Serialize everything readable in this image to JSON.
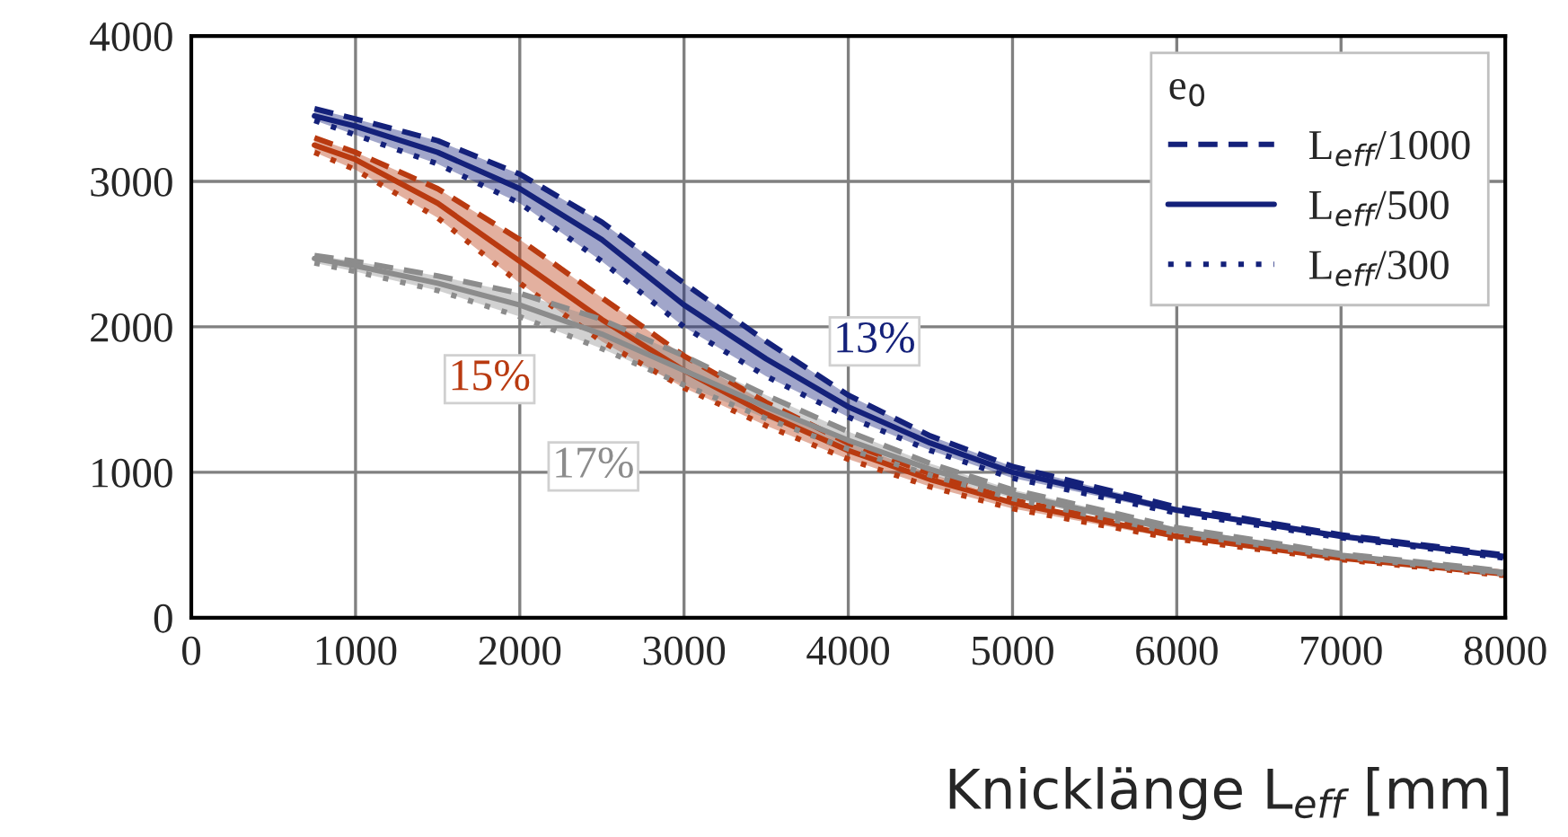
{
  "chart_data": {
    "type": "line",
    "xlabel": "Knicklänge L$_{eff}$ [mm]",
    "legend_title": "e$_{0}$",
    "x": [
      750,
      1000,
      1500,
      2000,
      2500,
      3000,
      3500,
      4000,
      4500,
      5000,
      6000,
      7000,
      8000
    ],
    "series": [
      {
        "name": "L$_{eff}$/1000",
        "color": "#14217a",
        "line_style": "dashed",
        "values": [
          3500,
          3430,
          3280,
          3050,
          2720,
          2300,
          1900,
          1530,
          1250,
          1040,
          760,
          570,
          430
        ]
      },
      {
        "name": "L$_{eff}$/500",
        "color": "#14217a",
        "line_style": "solid",
        "values": [
          3450,
          3380,
          3200,
          2950,
          2600,
          2150,
          1780,
          1450,
          1200,
          1000,
          740,
          560,
          420
        ],
        "lower": [
          3420,
          3320,
          3120,
          2850,
          2450,
          2000,
          1660,
          1380,
          1150,
          960,
          720,
          550,
          410
        ],
        "upper": [
          3500,
          3430,
          3280,
          3050,
          2720,
          2300,
          1900,
          1530,
          1250,
          1040,
          760,
          570,
          430
        ]
      },
      {
        "name": "L$_{eff}$/300",
        "color": "#14217a",
        "line_style": "dotted",
        "values": [
          3420,
          3320,
          3120,
          2850,
          2450,
          2000,
          1660,
          1380,
          1150,
          960,
          720,
          550,
          410
        ]
      },
      {
        "color": "#b93a10",
        "line_style": "dashed",
        "values": [
          3300,
          3200,
          2950,
          2600,
          2200,
          1800,
          1480,
          1200,
          990,
          810,
          570,
          420,
          310
        ]
      },
      {
        "color": "#b93a10",
        "line_style": "solid",
        "values": [
          3250,
          3150,
          2850,
          2450,
          2050,
          1700,
          1400,
          1150,
          950,
          790,
          560,
          410,
          300
        ],
        "lower": [
          3200,
          3080,
          2750,
          2300,
          1900,
          1580,
          1320,
          1090,
          900,
          750,
          540,
          400,
          290
        ],
        "upper": [
          3300,
          3200,
          2950,
          2600,
          2200,
          1800,
          1480,
          1200,
          990,
          810,
          570,
          420,
          310
        ]
      },
      {
        "color": "#b93a10",
        "line_style": "dotted",
        "values": [
          3200,
          3080,
          2750,
          2300,
          1900,
          1580,
          1320,
          1090,
          900,
          750,
          540,
          400,
          290
        ]
      },
      {
        "color": "#8c8c8c",
        "line_style": "dashed",
        "values": [
          2490,
          2450,
          2350,
          2230,
          2050,
          1800,
          1530,
          1280,
          1060,
          880,
          620,
          440,
          320
        ]
      },
      {
        "color": "#8c8c8c",
        "line_style": "solid",
        "values": [
          2470,
          2420,
          2300,
          2150,
          1950,
          1700,
          1450,
          1220,
          1020,
          850,
          600,
          430,
          310
        ],
        "lower": [
          2440,
          2380,
          2250,
          2070,
          1850,
          1600,
          1370,
          1160,
          980,
          820,
          580,
          420,
          300
        ],
        "upper": [
          2490,
          2450,
          2350,
          2230,
          2050,
          1800,
          1530,
          1280,
          1060,
          880,
          620,
          440,
          320
        ]
      },
      {
        "color": "#8c8c8c",
        "line_style": "dotted",
        "values": [
          2440,
          2380,
          2250,
          2070,
          1850,
          1600,
          1370,
          1160,
          980,
          820,
          580,
          420,
          300
        ]
      }
    ],
    "annotations": [
      "13%",
      "15%",
      "17%"
    ],
    "xlim": [
      0,
      8000
    ],
    "ylim": [
      0,
      4000
    ],
    "xticks": [
      0,
      1000,
      2000,
      3000,
      4000,
      5000,
      6000,
      7000,
      8000
    ],
    "yticks": [
      0,
      1000,
      2000,
      3000,
      4000
    ],
    "grid": true,
    "legend": "top right"
  }
}
